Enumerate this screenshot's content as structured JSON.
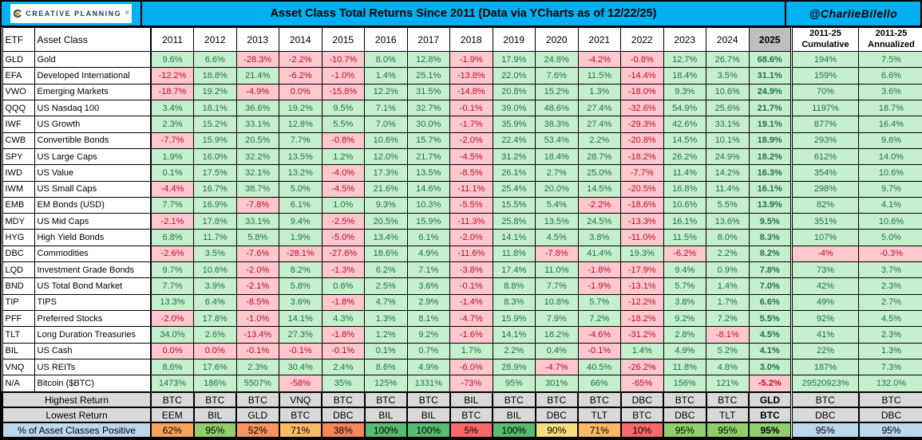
{
  "header": {
    "logo_text": "CREATIVE PLANNING",
    "logo_tm": "®",
    "title": "Asset Class Total Returns Since 2011 (Data via YCharts as of 12/22/25)",
    "handle": "@CharlieBilello"
  },
  "colors": {
    "accent_cyan": "#00B0F0",
    "brand_navy": "#1C4257",
    "brand_gold": "#C9A252",
    "positive_bg": "#C6EFCE",
    "positive_text": "#1F7244",
    "negative_bg": "#FFC7CE",
    "negative_text": "#B11226",
    "header_2025_bg": "#BFBFBF",
    "footer_gray": "#D9D9D9",
    "footer_blue": "#BDD7EE"
  },
  "chart_data": {
    "type": "table",
    "title": "Asset Class Total Returns Since 2011 (Data via YCharts as of 12/22/25)",
    "columns": {
      "etf": "ETF",
      "asset_class": "Asset Class",
      "years": [
        "2011",
        "2012",
        "2013",
        "2014",
        "2015",
        "2016",
        "2017",
        "2018",
        "2019",
        "2020",
        "2021",
        "2022",
        "2023",
        "2024",
        "2025"
      ],
      "summary": [
        {
          "line1": "2011-25",
          "line2": "Cumulative"
        },
        {
          "line1": "2011-25",
          "line2": "Annualized"
        }
      ]
    },
    "rows": [
      {
        "etf": "GLD",
        "asset_class": "Gold",
        "returns": [
          "9.6%",
          "6.6%",
          "-28.3%",
          "-2.2%",
          "-10.7%",
          "8.0%",
          "12.8%",
          "-1.9%",
          "17.9%",
          "24.8%",
          "-4.2%",
          "-0.8%",
          "12.7%",
          "26.7%",
          "68.6%"
        ],
        "cumulative": "194%",
        "annualized": "7.5%"
      },
      {
        "etf": "EFA",
        "asset_class": "Developed International",
        "returns": [
          "-12.2%",
          "18.8%",
          "21.4%",
          "-6.2%",
          "-1.0%",
          "1.4%",
          "25.1%",
          "-13.8%",
          "22.0%",
          "7.6%",
          "11.5%",
          "-14.4%",
          "18.4%",
          "3.5%",
          "31.1%"
        ],
        "cumulative": "159%",
        "annualized": "6.6%"
      },
      {
        "etf": "VWO",
        "asset_class": "Emerging Markets",
        "returns": [
          "-18.7%",
          "19.2%",
          "-4.9%",
          "0.0%",
          "-15.8%",
          "12.2%",
          "31.5%",
          "-14.8%",
          "20.8%",
          "15.2%",
          "1.3%",
          "-18.0%",
          "9.3%",
          "10.6%",
          "24.9%"
        ],
        "cumulative": "70%",
        "annualized": "3.6%"
      },
      {
        "etf": "QQQ",
        "asset_class": "US Nasdaq 100",
        "returns": [
          "3.4%",
          "18.1%",
          "36.6%",
          "19.2%",
          "9.5%",
          "7.1%",
          "32.7%",
          "-0.1%",
          "39.0%",
          "48.6%",
          "27.4%",
          "-32.6%",
          "54.9%",
          "25.6%",
          "21.7%"
        ],
        "cumulative": "1197%",
        "annualized": "18.7%"
      },
      {
        "etf": "IWF",
        "asset_class": "US Growth",
        "returns": [
          "2.3%",
          "15.2%",
          "33.1%",
          "12.8%",
          "5.5%",
          "7.0%",
          "30.0%",
          "-1.7%",
          "35.9%",
          "38.3%",
          "27.4%",
          "-29.3%",
          "42.6%",
          "33.1%",
          "19.1%"
        ],
        "cumulative": "877%",
        "annualized": "16.4%"
      },
      {
        "etf": "CWB",
        "asset_class": "Convertible Bonds",
        "returns": [
          "-7.7%",
          "15.9%",
          "20.5%",
          "7.7%",
          "-0.8%",
          "10.6%",
          "15.7%",
          "-2.0%",
          "22.4%",
          "53.4%",
          "2.2%",
          "-20.8%",
          "14.5%",
          "10.1%",
          "18.9%"
        ],
        "cumulative": "293%",
        "annualized": "9.6%"
      },
      {
        "etf": "SPY",
        "asset_class": "US Large Caps",
        "returns": [
          "1.9%",
          "16.0%",
          "32.2%",
          "13.5%",
          "1.2%",
          "12.0%",
          "21.7%",
          "-4.5%",
          "31.2%",
          "18.4%",
          "28.7%",
          "-18.2%",
          "26.2%",
          "24.9%",
          "18.2%"
        ],
        "cumulative": "612%",
        "annualized": "14.0%"
      },
      {
        "etf": "IWD",
        "asset_class": "US Value",
        "returns": [
          "0.1%",
          "17.5%",
          "32.1%",
          "13.2%",
          "-4.0%",
          "17.3%",
          "13.5%",
          "-8.5%",
          "26.1%",
          "2.7%",
          "25.0%",
          "-7.7%",
          "11.4%",
          "14.2%",
          "16.3%"
        ],
        "cumulative": "354%",
        "annualized": "10.6%"
      },
      {
        "etf": "IWM",
        "asset_class": "US Small Caps",
        "returns": [
          "-4.4%",
          "16.7%",
          "38.7%",
          "5.0%",
          "-4.5%",
          "21.6%",
          "14.6%",
          "-11.1%",
          "25.4%",
          "20.0%",
          "14.5%",
          "-20.5%",
          "16.8%",
          "11.4%",
          "16.1%"
        ],
        "cumulative": "298%",
        "annualized": "9.7%"
      },
      {
        "etf": "EMB",
        "asset_class": "EM Bonds (USD)",
        "returns": [
          "7.7%",
          "16.9%",
          "-7.8%",
          "6.1%",
          "1.0%",
          "9.3%",
          "10.3%",
          "-5.5%",
          "15.5%",
          "5.4%",
          "-2.2%",
          "-18.6%",
          "10.6%",
          "5.5%",
          "13.9%"
        ],
        "cumulative": "82%",
        "annualized": "4.1%"
      },
      {
        "etf": "MDY",
        "asset_class": "US Mid Caps",
        "returns": [
          "-2.1%",
          "17.8%",
          "33.1%",
          "9.4%",
          "-2.5%",
          "20.5%",
          "15.9%",
          "-11.3%",
          "25.8%",
          "13.5%",
          "24.5%",
          "-13.3%",
          "16.1%",
          "13.6%",
          "9.5%"
        ],
        "cumulative": "351%",
        "annualized": "10.6%"
      },
      {
        "etf": "HYG",
        "asset_class": "High Yield Bonds",
        "returns": [
          "6.8%",
          "11.7%",
          "5.8%",
          "1.9%",
          "-5.0%",
          "13.4%",
          "6.1%",
          "-2.0%",
          "14.1%",
          "4.5%",
          "3.8%",
          "-11.0%",
          "11.5%",
          "8.0%",
          "8.3%"
        ],
        "cumulative": "107%",
        "annualized": "5.0%"
      },
      {
        "etf": "DBC",
        "asset_class": "Commodities",
        "returns": [
          "-2.6%",
          "3.5%",
          "-7.6%",
          "-28.1%",
          "-27.6%",
          "18.6%",
          "4.9%",
          "-11.6%",
          "11.8%",
          "-7.8%",
          "41.4%",
          "19.3%",
          "-6.2%",
          "2.2%",
          "8.2%"
        ],
        "cumulative": "-4%",
        "annualized": "-0.3%"
      },
      {
        "etf": "LQD",
        "asset_class": "Investment Grade Bonds",
        "returns": [
          "9.7%",
          "10.6%",
          "-2.0%",
          "8.2%",
          "-1.3%",
          "6.2%",
          "7.1%",
          "-3.8%",
          "17.4%",
          "11.0%",
          "-1.8%",
          "-17.9%",
          "9.4%",
          "0.9%",
          "7.8%"
        ],
        "cumulative": "73%",
        "annualized": "3.7%"
      },
      {
        "etf": "BND",
        "asset_class": "US Total Bond Market",
        "returns": [
          "7.7%",
          "3.9%",
          "-2.1%",
          "5.8%",
          "0.6%",
          "2.5%",
          "3.6%",
          "-0.1%",
          "8.8%",
          "7.7%",
          "-1.9%",
          "-13.1%",
          "5.7%",
          "1.4%",
          "7.0%"
        ],
        "cumulative": "42%",
        "annualized": "2.3%"
      },
      {
        "etf": "TIP",
        "asset_class": "TIPS",
        "returns": [
          "13.3%",
          "6.4%",
          "-8.5%",
          "3.6%",
          "-1.8%",
          "4.7%",
          "2.9%",
          "-1.4%",
          "8.3%",
          "10.8%",
          "5.7%",
          "-12.2%",
          "3.8%",
          "1.7%",
          "6.6%"
        ],
        "cumulative": "49%",
        "annualized": "2.7%"
      },
      {
        "etf": "PFF",
        "asset_class": "Preferred Stocks",
        "returns": [
          "-2.0%",
          "17.8%",
          "-1.0%",
          "14.1%",
          "4.3%",
          "1.3%",
          "8.1%",
          "-4.7%",
          "15.9%",
          "7.9%",
          "7.2%",
          "-18.2%",
          "9.2%",
          "7.2%",
          "5.5%"
        ],
        "cumulative": "92%",
        "annualized": "4.5%"
      },
      {
        "etf": "TLT",
        "asset_class": "Long Duration Treasuries",
        "returns": [
          "34.0%",
          "2.6%",
          "-13.4%",
          "27.3%",
          "-1.8%",
          "1.2%",
          "9.2%",
          "-1.6%",
          "14.1%",
          "18.2%",
          "-4.6%",
          "-31.2%",
          "2.8%",
          "-8.1%",
          "4.5%"
        ],
        "cumulative": "41%",
        "annualized": "2.3%"
      },
      {
        "etf": "BIL",
        "asset_class": "US Cash",
        "returns": [
          "0.0%",
          "0.0%",
          "-0.1%",
          "-0.1%",
          "-0.1%",
          "0.1%",
          "0.7%",
          "1.7%",
          "2.2%",
          "0.4%",
          "-0.1%",
          "1.4%",
          "4.9%",
          "5.2%",
          "4.1%"
        ],
        "cumulative": "22%",
        "annualized": "1.3%"
      },
      {
        "etf": "VNQ",
        "asset_class": "US REITs",
        "returns": [
          "8.6%",
          "17.6%",
          "2.3%",
          "30.4%",
          "2.4%",
          "8.6%",
          "4.9%",
          "-6.0%",
          "28.9%",
          "-4.7%",
          "40.5%",
          "-26.2%",
          "11.8%",
          "4.8%",
          "3.0%"
        ],
        "cumulative": "187%",
        "annualized": "7.3%"
      },
      {
        "etf": "N/A",
        "asset_class": "Bitcoin ($BTC)",
        "returns": [
          "1473%",
          "186%",
          "5507%",
          "-58%",
          "35%",
          "125%",
          "1331%",
          "-73%",
          "95%",
          "301%",
          "66%",
          "-65%",
          "156%",
          "121%",
          "-5.2%"
        ],
        "cumulative": "29520923%",
        "annualized": "132.0%"
      }
    ],
    "footer_rows": [
      {
        "label": "Highest Return",
        "style": "gray",
        "values": [
          "BTC",
          "BTC",
          "BTC",
          "VNQ",
          "BTC",
          "BTC",
          "BTC",
          "BIL",
          "BTC",
          "BTC",
          "BTC",
          "DBC",
          "BTC",
          "BTC",
          "GLD",
          "BTC",
          "BTC"
        ]
      },
      {
        "label": "Lowest Return",
        "style": "gray",
        "values": [
          "EEM",
          "BIL",
          "GLD",
          "BTC",
          "DBC",
          "BIL",
          "BIL",
          "BTC",
          "BIL",
          "DBC",
          "TLT",
          "BTC",
          "DBC",
          "TLT",
          "BTC",
          "DBC",
          "DBC"
        ]
      },
      {
        "label": "% of Asset Classes Positive",
        "style": "scale",
        "values": [
          "62%",
          "95%",
          "52%",
          "71%",
          "38%",
          "100%",
          "100%",
          "5%",
          "100%",
          "90%",
          "71%",
          "10%",
          "95%",
          "95%",
          "95%",
          "95%",
          "95%"
        ],
        "colors": [
          "#F9A65B",
          "#92CE6B",
          "#F9955E",
          "#FBB964",
          "#F8865C",
          "#57BB72",
          "#57BB72",
          "#F8696B",
          "#57BB72",
          "#F7DF7F",
          "#FBB964",
          "#F8696B",
          "#92CE6B",
          "#92CE6B",
          "#92CE6B",
          "#BDD7EE",
          "#BDD7EE"
        ]
      }
    ]
  }
}
